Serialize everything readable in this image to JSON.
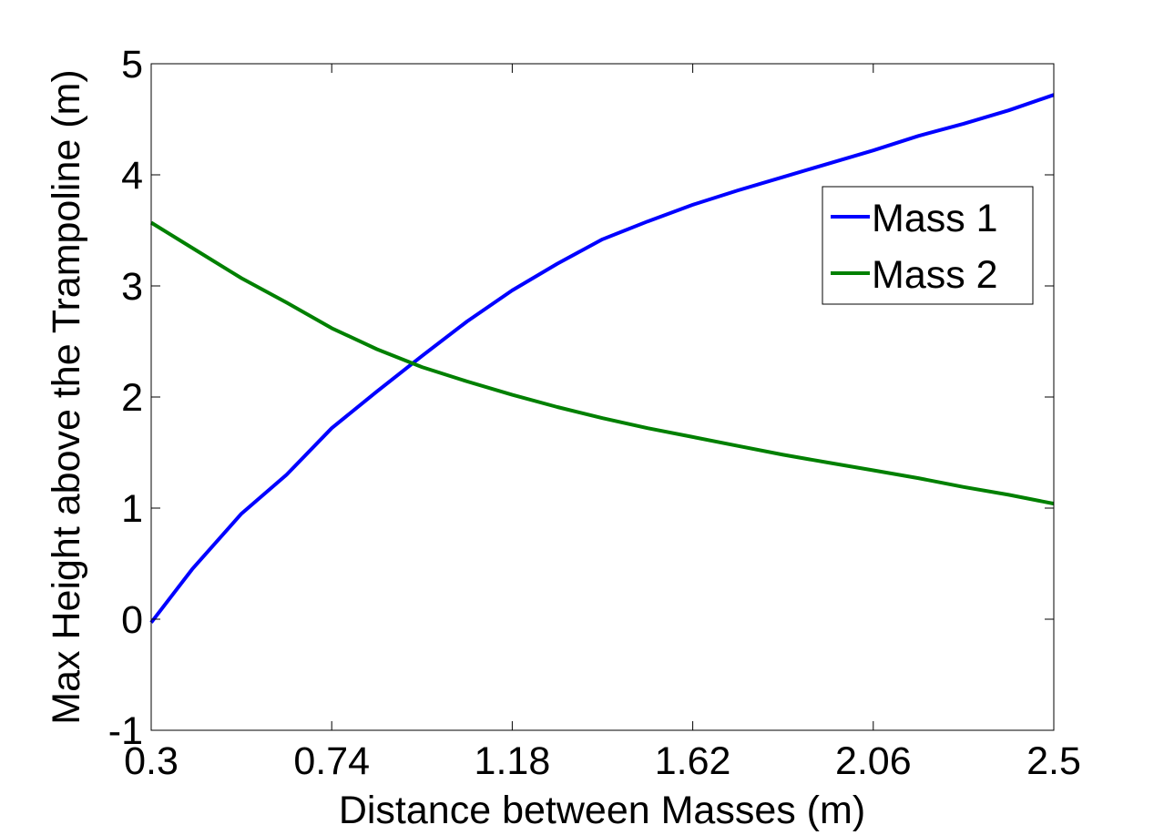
{
  "chart_data": {
    "type": "line",
    "xlabel": "Distance between Masses (m)",
    "ylabel": "Max Height above the Trampoline (m)",
    "xlim": [
      0.3,
      2.5
    ],
    "ylim": [
      -1,
      5
    ],
    "xticks": [
      "0.3",
      "0.74",
      "1.18",
      "1.62",
      "2.06",
      "2.5"
    ],
    "yticks": [
      "-1",
      "0",
      "1",
      "2",
      "3",
      "4",
      "5"
    ],
    "grid": false,
    "legend_position": "top-right",
    "series": [
      {
        "name": "Mass 1",
        "color": "#0000ff",
        "x": [
          0.3,
          0.4,
          0.52,
          0.63,
          0.74,
          0.85,
          0.96,
          1.07,
          1.18,
          1.29,
          1.4,
          1.51,
          1.62,
          1.73,
          1.84,
          1.95,
          2.06,
          2.17,
          2.28,
          2.39,
          2.5
        ],
        "y": [
          -0.03,
          0.45,
          0.95,
          1.3,
          1.72,
          2.05,
          2.37,
          2.68,
          2.96,
          3.2,
          3.42,
          3.58,
          3.73,
          3.86,
          3.98,
          4.1,
          4.22,
          4.35,
          4.46,
          4.58,
          4.72
        ]
      },
      {
        "name": "Mass 2",
        "color": "#008000",
        "x": [
          0.3,
          0.41,
          0.52,
          0.63,
          0.74,
          0.85,
          0.96,
          1.07,
          1.18,
          1.29,
          1.4,
          1.51,
          1.62,
          1.73,
          1.84,
          1.95,
          2.06,
          2.17,
          2.28,
          2.39,
          2.5
        ],
        "y": [
          3.57,
          3.32,
          3.07,
          2.85,
          2.62,
          2.43,
          2.27,
          2.14,
          2.02,
          1.91,
          1.81,
          1.72,
          1.64,
          1.56,
          1.48,
          1.41,
          1.34,
          1.27,
          1.19,
          1.12,
          1.04
        ]
      }
    ]
  }
}
